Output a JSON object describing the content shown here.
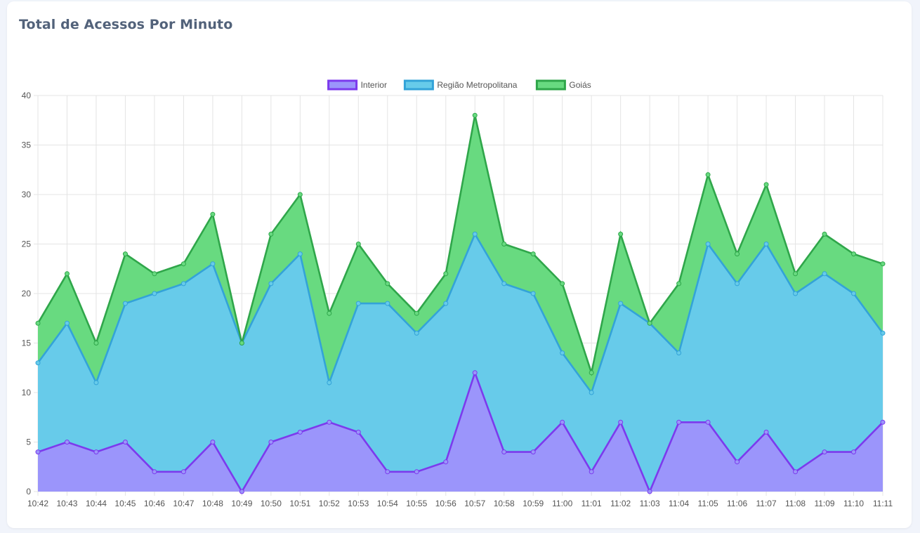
{
  "card": {
    "title": "Total de Acessos Por Minuto"
  },
  "chart_data": {
    "type": "area",
    "stacked": true,
    "title": "Total de Acessos Por Minuto",
    "xlabel": "",
    "ylabel": "",
    "ylim": [
      0,
      40
    ],
    "y_ticks": [
      0,
      5,
      10,
      15,
      20,
      25,
      30,
      35,
      40
    ],
    "grid": true,
    "legend_position": "top",
    "categories": [
      "10:42",
      "10:43",
      "10:44",
      "10:45",
      "10:46",
      "10:47",
      "10:48",
      "10:49",
      "10:50",
      "10:51",
      "10:52",
      "10:53",
      "10:54",
      "10:55",
      "10:56",
      "10:57",
      "10:58",
      "10:59",
      "11:00",
      "11:01",
      "11:02",
      "11:03",
      "11:04",
      "11:05",
      "11:06",
      "11:07",
      "11:08",
      "11:09",
      "11:10",
      "11:11"
    ],
    "series": [
      {
        "name": "Interior",
        "fill": "#9b95fb",
        "line": "#7c3aed",
        "values": [
          4,
          5,
          4,
          5,
          2,
          2,
          5,
          0,
          5,
          6,
          7,
          6,
          2,
          2,
          3,
          12,
          4,
          4,
          7,
          2,
          7,
          0,
          7,
          7,
          3,
          6,
          2,
          4,
          4,
          7
        ]
      },
      {
        "name": "Região Metropolitana",
        "fill": "#67cbea",
        "line": "#33a3d8",
        "values": [
          9,
          12,
          7,
          14,
          18,
          19,
          18,
          15,
          16,
          18,
          4,
          13,
          17,
          14,
          16,
          14,
          17,
          16,
          7,
          8,
          12,
          17,
          7,
          18,
          18,
          19,
          18,
          18,
          16,
          9
        ]
      },
      {
        "name": "Goiás",
        "fill": "#68da80",
        "line": "#2fa64a",
        "values": [
          4,
          5,
          4,
          5,
          2,
          2,
          5,
          0,
          5,
          6,
          7,
          6,
          2,
          2,
          3,
          12,
          4,
          4,
          7,
          2,
          7,
          0,
          7,
          7,
          3,
          6,
          2,
          4,
          4,
          7
        ]
      }
    ]
  }
}
